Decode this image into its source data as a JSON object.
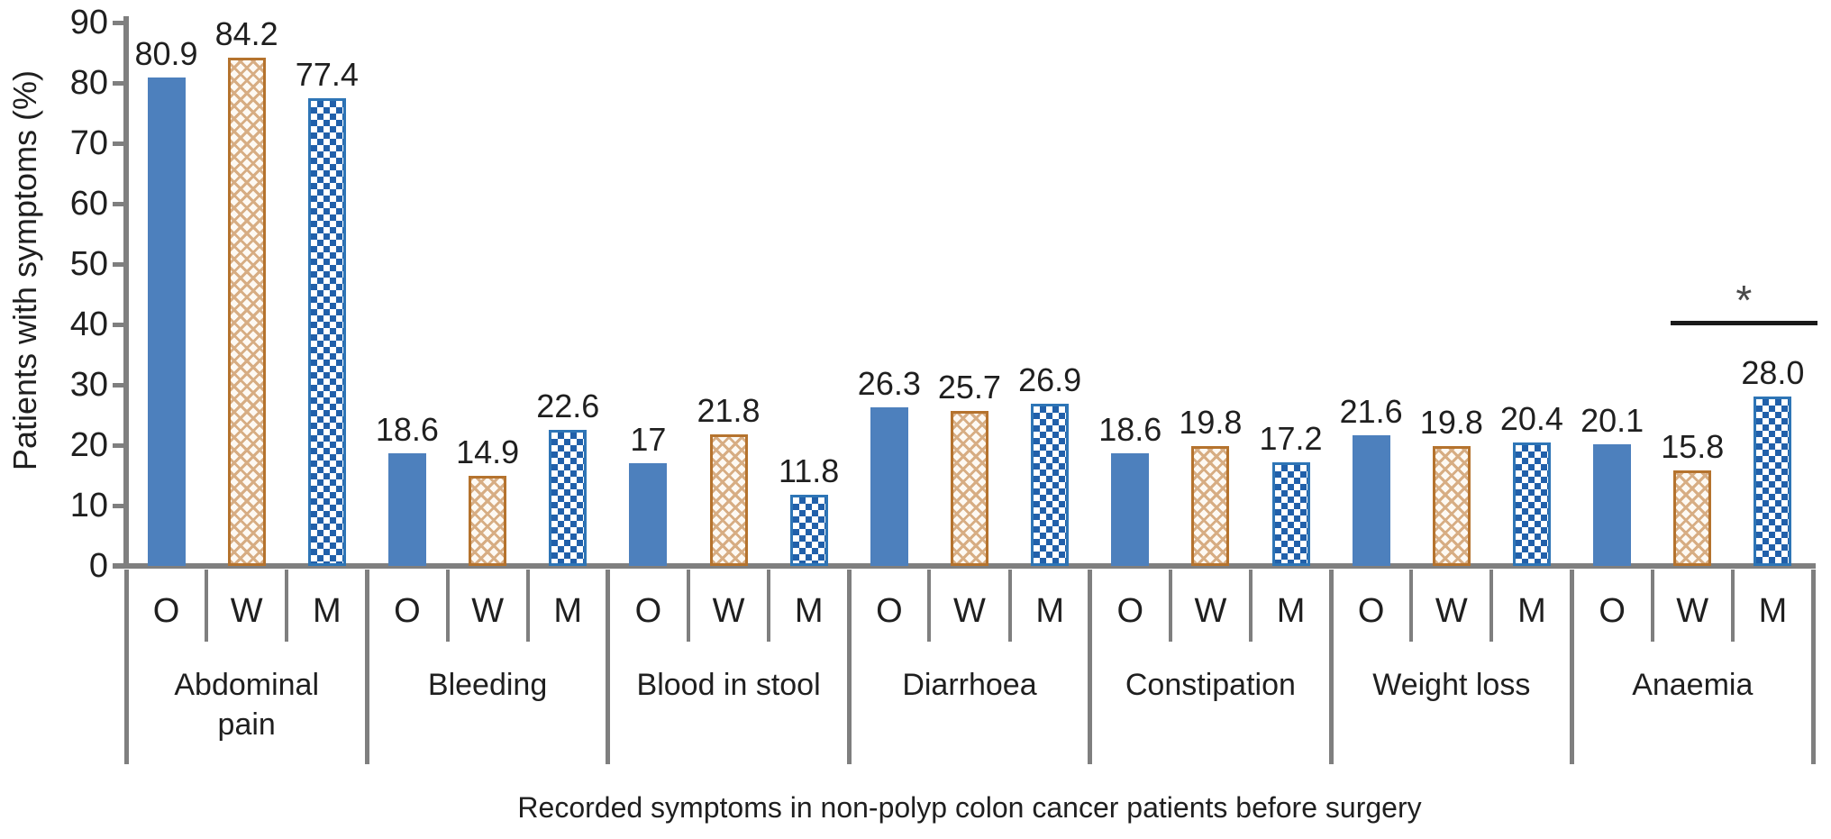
{
  "chart_data": {
    "type": "bar",
    "title": "",
    "xlabel": "Recorded symptoms in non-polyp colon cancer patients before surgery",
    "ylabel": "Patients with symptoms (%)",
    "ylim": [
      0,
      90
    ],
    "ytick_interval": 10,
    "yticks": [
      0,
      10,
      20,
      30,
      40,
      50,
      60,
      70,
      80,
      90
    ],
    "grid": "off",
    "legend": "none",
    "bar_group_sublabels": [
      "O",
      "W",
      "M"
    ],
    "categories": [
      "Abdominal\npain",
      "Bleeding",
      "Blood in stool",
      "Diarrhoea",
      "Constipation",
      "Weight loss",
      "Anaemia"
    ],
    "series": [
      {
        "name": "O",
        "pattern": "solid-blue",
        "values": [
          80.9,
          18.6,
          17,
          26.3,
          18.6,
          21.6,
          20.1
        ],
        "labels": [
          "80.9",
          "18.6",
          "17",
          "26.3",
          "18.6",
          "21.6",
          "20.1"
        ]
      },
      {
        "name": "W",
        "pattern": "tan-diamond-crosshatch",
        "values": [
          84.2,
          14.9,
          21.8,
          25.7,
          19.8,
          19.8,
          15.8
        ],
        "labels": [
          "84.2",
          "14.9",
          "21.8",
          "25.7",
          "19.8",
          "19.8",
          "15.8"
        ]
      },
      {
        "name": "M",
        "pattern": "blue-checkerboard",
        "values": [
          77.4,
          22.6,
          11.8,
          26.9,
          17.2,
          20.4,
          28.0
        ],
        "labels": [
          "77.4",
          "22.6",
          "11.8",
          "26.9",
          "17.2",
          "20.4",
          "28.0"
        ]
      }
    ],
    "significance": {
      "symbol": "*",
      "category": "Anaemia",
      "between_bars": [
        "W",
        "M"
      ]
    }
  },
  "colors": {
    "o_fill": "#4d80bd",
    "w_border": "#b5732e",
    "w_hatch": "#d7ad83",
    "w_bg": "#fdf9f3",
    "m_border": "#2e75b6",
    "m_check": "#2160aa",
    "axis_gray": "#7f7f7f",
    "text": "#1f1f1f",
    "sig_line": "#1a1a1a",
    "asterisk": "#4a4a4a"
  }
}
